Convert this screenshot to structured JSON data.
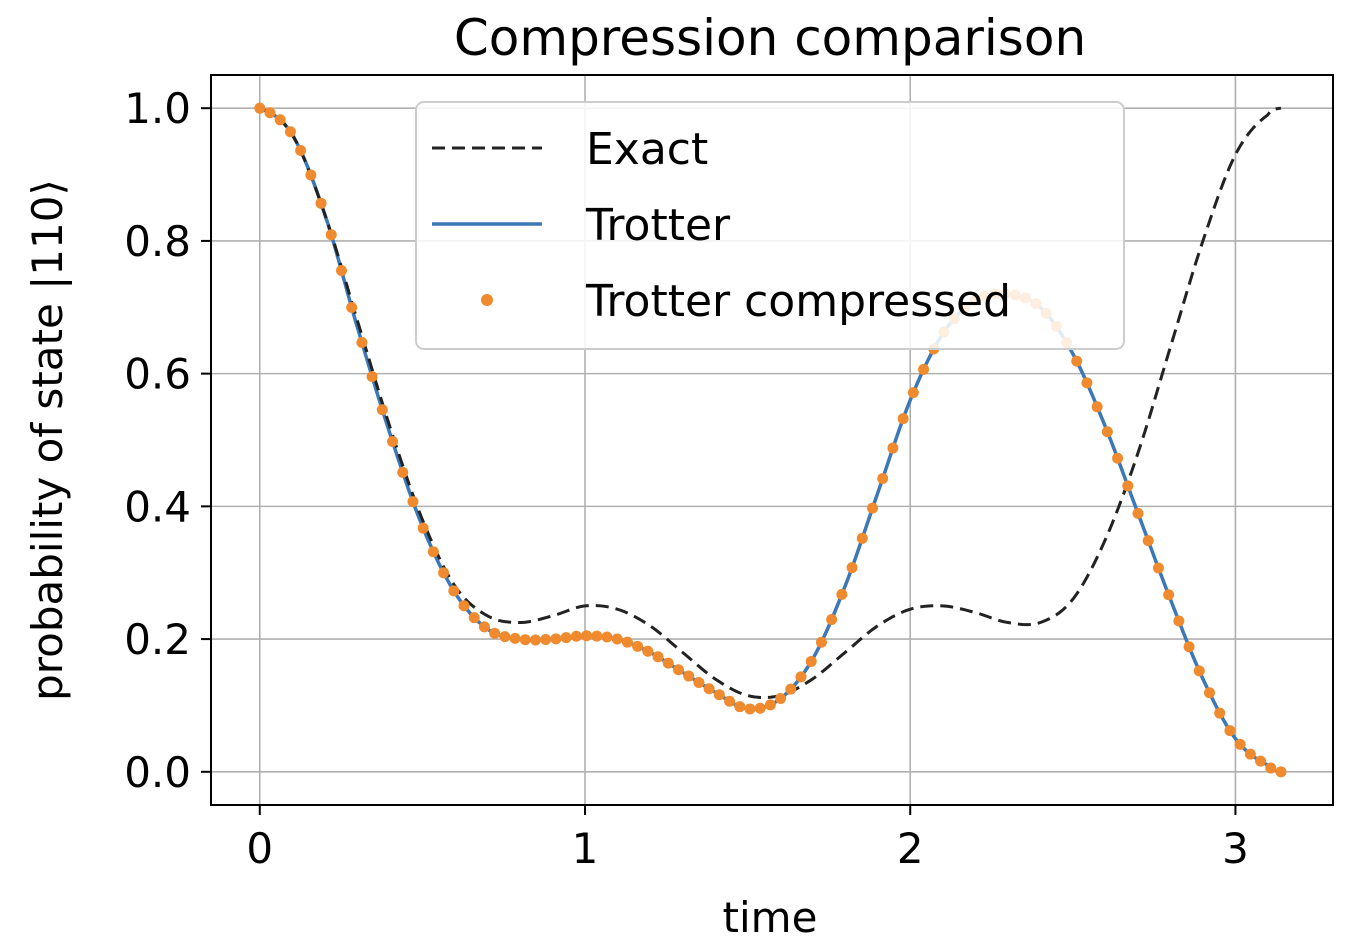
{
  "chart_data": {
    "type": "line",
    "title": "Compression comparison",
    "xlabel": "time",
    "ylabel": "probability of state |110⟩",
    "xlim": [
      -0.15,
      3.3
    ],
    "ylim": [
      -0.05,
      1.05
    ],
    "xticks": [
      0,
      1,
      2,
      3
    ],
    "xtick_labels": [
      "0",
      "1",
      "2",
      "3"
    ],
    "yticks": [
      0.0,
      0.2,
      0.4,
      0.6,
      0.8,
      1.0
    ],
    "ytick_labels": [
      "0.0",
      "0.2",
      "0.4",
      "0.6",
      "0.8",
      "1.0"
    ],
    "grid": true,
    "legend_position": "top-center",
    "series": [
      {
        "name": "Exact",
        "style": "dashed",
        "color": "#222222",
        "points": [
          [
            0.0,
            1.0
          ],
          [
            0.1,
            0.96
          ],
          [
            0.2,
            0.84
          ],
          [
            0.3,
            0.68
          ],
          [
            0.4,
            0.52
          ],
          [
            0.5,
            0.38
          ],
          [
            0.6,
            0.28
          ],
          [
            0.7,
            0.235
          ],
          [
            0.8,
            0.225
          ],
          [
            0.9,
            0.235
          ],
          [
            1.0,
            0.25
          ],
          [
            1.1,
            0.245
          ],
          [
            1.2,
            0.22
          ],
          [
            1.3,
            0.18
          ],
          [
            1.4,
            0.14
          ],
          [
            1.5,
            0.115
          ],
          [
            1.6,
            0.115
          ],
          [
            1.7,
            0.14
          ],
          [
            1.8,
            0.18
          ],
          [
            1.9,
            0.22
          ],
          [
            2.0,
            0.245
          ],
          [
            2.1,
            0.25
          ],
          [
            2.2,
            0.24
          ],
          [
            2.3,
            0.225
          ],
          [
            2.4,
            0.225
          ],
          [
            2.5,
            0.26
          ],
          [
            2.6,
            0.35
          ],
          [
            2.7,
            0.48
          ],
          [
            2.8,
            0.64
          ],
          [
            2.9,
            0.8
          ],
          [
            3.0,
            0.93
          ],
          [
            3.1,
            0.99
          ],
          [
            3.14,
            1.0
          ]
        ]
      },
      {
        "name": "Trotter",
        "style": "solid",
        "color": "#3b78b5",
        "points": [
          [
            0.0,
            1.0
          ],
          [
            0.1,
            0.96
          ],
          [
            0.2,
            0.84
          ],
          [
            0.3,
            0.67
          ],
          [
            0.4,
            0.51
          ],
          [
            0.5,
            0.37
          ],
          [
            0.6,
            0.27
          ],
          [
            0.7,
            0.215
          ],
          [
            0.8,
            0.2
          ],
          [
            0.9,
            0.2
          ],
          [
            1.0,
            0.205
          ],
          [
            1.1,
            0.2
          ],
          [
            1.2,
            0.18
          ],
          [
            1.3,
            0.15
          ],
          [
            1.4,
            0.12
          ],
          [
            1.5,
            0.095
          ],
          [
            1.6,
            0.11
          ],
          [
            1.7,
            0.17
          ],
          [
            1.8,
            0.28
          ],
          [
            1.9,
            0.42
          ],
          [
            2.0,
            0.56
          ],
          [
            2.1,
            0.66
          ],
          [
            2.2,
            0.71
          ],
          [
            2.3,
            0.72
          ],
          [
            2.4,
            0.7
          ],
          [
            2.5,
            0.63
          ],
          [
            2.6,
            0.52
          ],
          [
            2.7,
            0.39
          ],
          [
            2.8,
            0.26
          ],
          [
            2.9,
            0.14
          ],
          [
            3.0,
            0.05
          ],
          [
            3.1,
            0.01
          ],
          [
            3.14,
            0.0
          ]
        ]
      },
      {
        "name": "Trotter compressed",
        "style": "dots",
        "color": "#f08a2e",
        "points": []
      }
    ]
  }
}
